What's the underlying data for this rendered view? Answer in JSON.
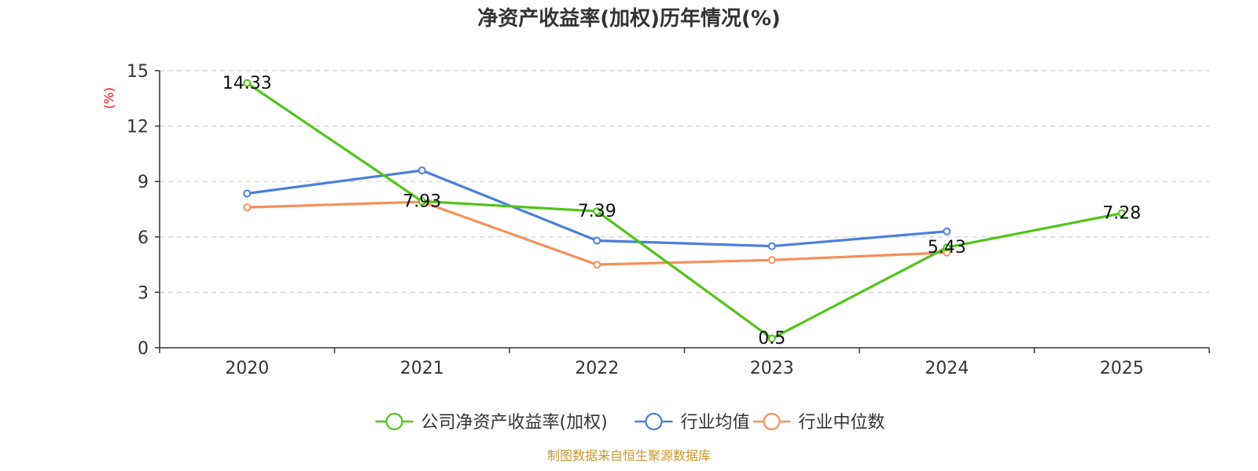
{
  "chart_data": {
    "type": "line",
    "title": "净资产收益率(加权)历年情况(%)",
    "ylabel": "(%)",
    "xlabel": "",
    "categories": [
      "2020",
      "2021",
      "2022",
      "2023",
      "2024",
      "2025"
    ],
    "ylim": [
      0,
      15
    ],
    "yticks": [
      0,
      3,
      6,
      9,
      12,
      15
    ],
    "grid": true,
    "legend_position": "bottom",
    "series": [
      {
        "name": "公司净资产收益率(加权)",
        "color": "#52c41a",
        "values": [
          14.33,
          7.93,
          7.39,
          0.5,
          5.43,
          7.28
        ],
        "labels": [
          "14.33",
          "7.93",
          "7.39",
          "0.5",
          "5.43",
          "7.28"
        ]
      },
      {
        "name": "行业均值",
        "color": "#4a7fdb",
        "values": [
          8.35,
          9.6,
          5.8,
          5.5,
          6.3,
          null
        ]
      },
      {
        "name": "行业中位数",
        "color": "#f5905a",
        "values": [
          7.6,
          7.9,
          4.5,
          4.75,
          5.15,
          null
        ]
      }
    ],
    "source": "制图数据来自恒生聚源数据库"
  }
}
